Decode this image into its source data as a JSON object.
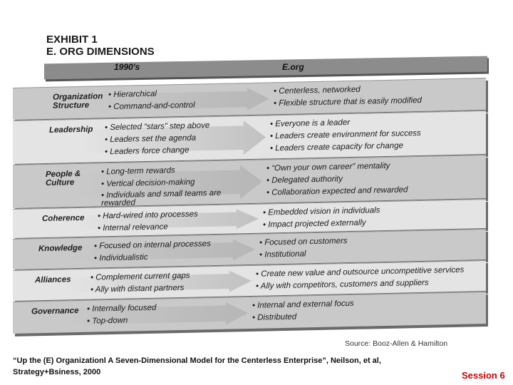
{
  "exhibit": {
    "title": "EXHIBIT 1",
    "subtitle": "E. ORG DIMENSIONS",
    "col_left": "1990's",
    "col_right": "E.org",
    "rows": [
      {
        "label": "Organization Structure",
        "left": [
          "• Hierarchical",
          "• Command-and-control"
        ],
        "right": [
          "• Centerless, networked",
          "• Flexible structure that is easily modified"
        ]
      },
      {
        "label": "Leadership",
        "left": [
          "• Selected “stars” step above",
          "• Leaders set the agenda",
          "• Leaders force change"
        ],
        "right": [
          "• Everyone is a leader",
          "• Leaders create environment for success",
          "• Leaders create capacity for change"
        ]
      },
      {
        "label": "People & Culture",
        "left": [
          "• Long-term rewards",
          "• Vertical decision-making",
          "• Individuals and small teams are rewarded"
        ],
        "right": [
          "• “Own your own career” mentality",
          "• Delegated authority",
          "• Collaboration expected and rewarded"
        ]
      },
      {
        "label": "Coherence",
        "left": [
          "• Hard-wired into processes",
          "• Internal relevance"
        ],
        "right": [
          "• Embedded vision in individuals",
          "• Impact projected externally"
        ]
      },
      {
        "label": "Knowledge",
        "left": [
          "• Focused on internal processes",
          "• Individualistic"
        ],
        "right": [
          "• Focused on customers",
          "• Institutional"
        ]
      },
      {
        "label": "Alliances",
        "left": [
          "• Complement current gaps",
          "• Ally with distant partners"
        ],
        "right": [
          "• Create new value and outsource uncompetitive services",
          "• Ally with competitors, customers and suppliers"
        ]
      },
      {
        "label": "Governance",
        "left": [
          "• Internally focused",
          "• Top-down"
        ],
        "right": [
          "• Internal and external focus",
          "• Distributed"
        ]
      }
    ],
    "source": "Source: Booz-Allen & Hamilton"
  },
  "caption": "“Up the (E) Organizationl A Seven-Dimensional Model for the Centerless Enterprise”, Neilson, et al, Strategy+Bsiness, 2000",
  "session": "Session 6",
  "colors": {
    "session": "#cc0000",
    "row_dark": "#c9c9c9",
    "row_light": "#e4e4e4",
    "header": "#8c8c8c"
  }
}
